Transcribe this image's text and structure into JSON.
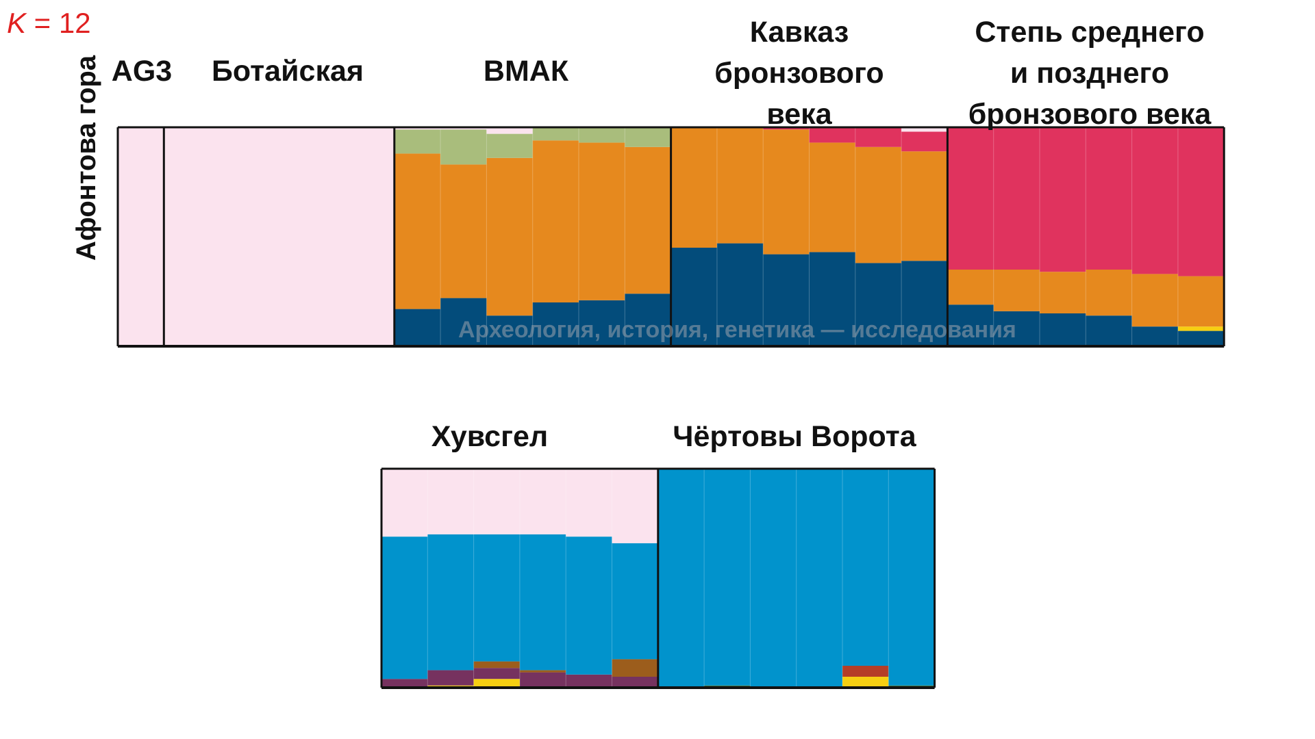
{
  "k_label": {
    "k": "K",
    "rest": " = 12"
  },
  "watermark": "Археология, история, генетика — исследования",
  "colors": {
    "pink": "#fbe3ee",
    "green": "#a9bd7c",
    "orange": "#e6891e",
    "navy": "#034c7b",
    "red": "#e0335e",
    "yellow": "#f6cf12",
    "blue": "#0193cc",
    "purple": "#76325f",
    "brown": "#9c5d1c",
    "rust": "#b53e27",
    "darkgreen": "#3a6b3a"
  },
  "chart_data": [
    {
      "type": "bar",
      "stacked": true,
      "component_order": [
        "navy",
        "yellow",
        "orange",
        "red",
        "green",
        "pink"
      ],
      "ylim": [
        0,
        1
      ],
      "ylabel": "Афонтова гора",
      "groups": [
        {
          "label": "AG3",
          "individuals": [
            {
              "pink": 1.0
            }
          ]
        },
        {
          "label": "Ботайская",
          "individuals": [
            {
              "pink": 1.0
            }
          ],
          "width_units": 5
        },
        {
          "label": "ВМАК",
          "individuals": [
            {
              "navy": 0.17,
              "orange": 0.71,
              "green": 0.11,
              "pink": 0.01
            },
            {
              "navy": 0.22,
              "orange": 0.61,
              "green": 0.16,
              "pink": 0.01
            },
            {
              "navy": 0.14,
              "orange": 0.72,
              "green": 0.11,
              "pink": 0.03
            },
            {
              "navy": 0.2,
              "orange": 0.74,
              "green": 0.06
            },
            {
              "navy": 0.21,
              "orange": 0.72,
              "green": 0.07
            },
            {
              "navy": 0.24,
              "orange": 0.67,
              "green": 0.09
            }
          ]
        },
        {
          "label": "Кавказ бронзового века",
          "individuals": [
            {
              "navy": 0.45,
              "orange": 0.55
            },
            {
              "navy": 0.47,
              "orange": 0.53
            },
            {
              "navy": 0.42,
              "orange": 0.57,
              "red": 0.01
            },
            {
              "navy": 0.43,
              "orange": 0.5,
              "red": 0.07
            },
            {
              "navy": 0.38,
              "orange": 0.53,
              "red": 0.09
            },
            {
              "navy": 0.39,
              "orange": 0.5,
              "red": 0.09,
              "pink": 0.02
            }
          ]
        },
        {
          "label": "Степь среднего и позднего бронзового века",
          "individuals": [
            {
              "navy": 0.19,
              "orange": 0.16,
              "red": 0.65
            },
            {
              "navy": 0.16,
              "orange": 0.19,
              "red": 0.65
            },
            {
              "navy": 0.15,
              "orange": 0.19,
              "red": 0.66
            },
            {
              "navy": 0.14,
              "orange": 0.21,
              "red": 0.65
            },
            {
              "navy": 0.09,
              "orange": 0.24,
              "red": 0.67
            },
            {
              "navy": 0.07,
              "yellow": 0.02,
              "orange": 0.23,
              "red": 0.68
            }
          ]
        }
      ]
    },
    {
      "type": "bar",
      "stacked": true,
      "component_order": [
        "darkgreen",
        "yellow",
        "rust",
        "purple",
        "brown",
        "blue",
        "pink"
      ],
      "ylim": [
        0,
        1
      ],
      "groups": [
        {
          "label": "Хувсгел",
          "individuals": [
            {
              "purple": 0.04,
              "blue": 0.65,
              "pink": 0.31
            },
            {
              "yellow": 0.01,
              "purple": 0.07,
              "blue": 0.62,
              "pink": 0.3
            },
            {
              "yellow": 0.04,
              "purple": 0.05,
              "brown": 0.03,
              "blue": 0.58,
              "pink": 0.3
            },
            {
              "purple": 0.07,
              "brown": 0.01,
              "blue": 0.62,
              "pink": 0.3
            },
            {
              "purple": 0.06,
              "blue": 0.63,
              "pink": 0.31
            },
            {
              "purple": 0.05,
              "brown": 0.08,
              "blue": 0.53,
              "pink": 0.34
            }
          ]
        },
        {
          "label": "Чёртовы Ворота",
          "individuals": [
            {
              "blue": 1.0
            },
            {
              "darkgreen": 0.01,
              "blue": 0.99
            },
            {
              "blue": 1.0
            },
            {
              "blue": 1.0
            },
            {
              "rust": 0.05,
              "yellow": 0.05,
              "blue": 0.9
            },
            {
              "darkgreen": 0.01,
              "blue": 0.99
            }
          ]
        }
      ]
    }
  ]
}
